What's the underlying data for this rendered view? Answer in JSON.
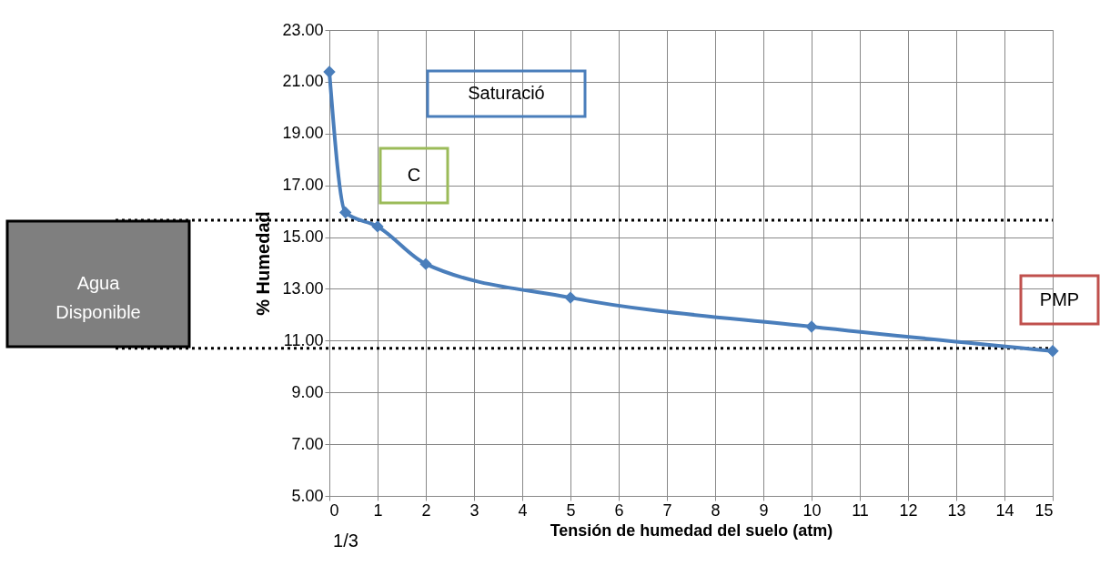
{
  "chart_data": {
    "type": "line",
    "xlabel": "Tensión de humedad del suelo (atm)",
    "ylabel": "% Humedad",
    "x": [
      0,
      0.333,
      1,
      2,
      5,
      10,
      15
    ],
    "series": [
      {
        "color": "#4a7ebb",
        "values": [
          21.38,
          15.95,
          15.41,
          13.96,
          12.66,
          11.54,
          10.6
        ]
      }
    ],
    "xlim": [
      0,
      15
    ],
    "xticks": [
      0,
      1,
      2,
      3,
      4,
      5,
      6,
      7,
      8,
      9,
      10,
      11,
      12,
      13,
      14,
      15
    ],
    "ylim": [
      5,
      23
    ],
    "yticks": [
      {
        "value": 5,
        "label": "5.00"
      },
      {
        "value": 7,
        "label": "7.00"
      },
      {
        "value": 9,
        "label": "9.00"
      },
      {
        "value": 11,
        "label": "11.00"
      },
      {
        "value": 13,
        "label": "13.00"
      },
      {
        "value": 15,
        "label": "15.00"
      },
      {
        "value": 17,
        "label": "17.00"
      },
      {
        "value": 19,
        "label": "19.00"
      },
      {
        "value": 21,
        "label": "21.00"
      },
      {
        "value": 23,
        "label": "23.00"
      }
    ],
    "grid": true,
    "marker": "diamond",
    "line_style": "solid",
    "ref_lines": [
      {
        "axis": "y",
        "value": 15.65,
        "color": "#000000",
        "line_style": "dotted"
      },
      {
        "axis": "y",
        "value": 10.7,
        "color": "#000000",
        "line_style": "dotted"
      }
    ],
    "annotations": [
      "Saturació",
      "C",
      "PMP",
      "Agua Disponible",
      "1/3"
    ]
  }
}
